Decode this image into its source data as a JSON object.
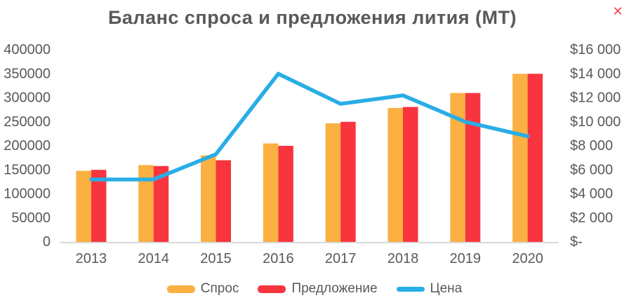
{
  "window": {
    "close_icon": "✕"
  },
  "chart_data": {
    "type": "combo-bar-line",
    "title": "Баланс спроса и предложения лития (МТ)",
    "categories": [
      "2013",
      "2014",
      "2015",
      "2016",
      "2017",
      "2018",
      "2019",
      "2020"
    ],
    "series": [
      {
        "name": "Спрос",
        "type": "bar",
        "axis": "left",
        "color": "#FBB042",
        "values": [
          148000,
          160000,
          180000,
          205000,
          247000,
          279000,
          310000,
          350000
        ]
      },
      {
        "name": "Предложение",
        "type": "bar",
        "axis": "left",
        "color": "#F8353E",
        "values": [
          150000,
          158000,
          170000,
          200000,
          250000,
          281000,
          310000,
          350000
        ]
      },
      {
        "name": "Цена",
        "type": "line",
        "axis": "right",
        "color": "#29ADE6",
        "values": [
          5200,
          5200,
          7300,
          14000,
          11500,
          12200,
          10000,
          8800
        ]
      }
    ],
    "left_axis": {
      "min": 0,
      "max": 400000,
      "step": 50000,
      "tick_labels": [
        "400000",
        "350000",
        "300000",
        "250000",
        "200000",
        "150000",
        "100000",
        "50000",
        "0"
      ]
    },
    "right_axis": {
      "min": 0,
      "max": 16000,
      "step": 2000,
      "tick_labels": [
        "$16 000",
        "$14 000",
        "$12 000",
        "$10 000",
        "$8 000",
        "$6 000",
        "$4 000",
        "$2 000",
        "$-"
      ]
    },
    "grid": false,
    "legend_position": "bottom"
  },
  "colors": {
    "text": "#595959",
    "axis_line": "#D9D9D9",
    "close": "#F4444B",
    "background": "#FFFFFF"
  }
}
